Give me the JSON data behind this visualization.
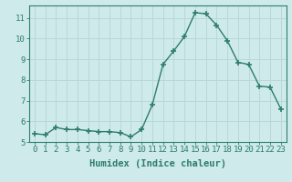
{
  "x": [
    0,
    1,
    2,
    3,
    4,
    5,
    6,
    7,
    8,
    9,
    10,
    11,
    12,
    13,
    14,
    15,
    16,
    17,
    18,
    19,
    20,
    21,
    22,
    23
  ],
  "y": [
    5.4,
    5.35,
    5.7,
    5.6,
    5.6,
    5.55,
    5.5,
    5.5,
    5.45,
    5.25,
    5.6,
    6.8,
    8.75,
    9.4,
    10.1,
    11.25,
    11.2,
    10.65,
    9.9,
    8.85,
    8.75,
    7.7,
    7.65,
    6.6
  ],
  "line_color": "#2e7d6e",
  "marker": "+",
  "marker_size": 5,
  "bg_color": "#ceeaea",
  "grid_color": "#b8d8d8",
  "xlabel": "Humidex (Indice chaleur)",
  "xlim": [
    -0.5,
    23.5
  ],
  "ylim": [
    5.0,
    11.6
  ],
  "yticks": [
    5,
    6,
    7,
    8,
    9,
    10,
    11
  ],
  "xticks": [
    0,
    1,
    2,
    3,
    4,
    5,
    6,
    7,
    8,
    9,
    10,
    11,
    12,
    13,
    14,
    15,
    16,
    17,
    18,
    19,
    20,
    21,
    22,
    23
  ],
  "label_fontsize": 7.5,
  "tick_fontsize": 6.5,
  "spine_color": "#2e7d6e",
  "tick_color": "#2e7d6e"
}
